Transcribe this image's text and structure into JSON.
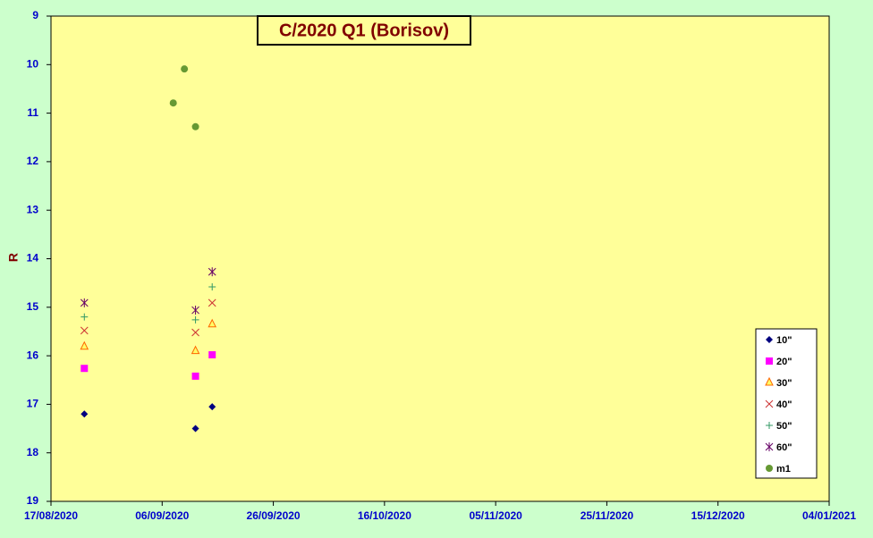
{
  "chart_data": {
    "type": "scatter",
    "title": "C/2020 Q1 (Borisov)",
    "y_label": "R",
    "y_inverted": true,
    "grid": false,
    "legend": "lower right",
    "xlim": [
      "2020-08-17",
      "2021-01-04"
    ],
    "xticks": [
      {
        "value": "2020-08-17",
        "label": "17/08/2020"
      },
      {
        "value": "2020-09-06",
        "label": "06/09/2020"
      },
      {
        "value": "2020-09-26",
        "label": "26/09/2020"
      },
      {
        "value": "2020-10-16",
        "label": "16/10/2020"
      },
      {
        "value": "2020-11-05",
        "label": "05/11/2020"
      },
      {
        "value": "2020-11-25",
        "label": "25/11/2020"
      },
      {
        "value": "2020-12-15",
        "label": "15/12/2020"
      },
      {
        "value": "2021-01-04",
        "label": "04/01/2021"
      }
    ],
    "ylim": [
      9,
      19
    ],
    "yticks": [
      9,
      10,
      11,
      12,
      13,
      14,
      15,
      16,
      17,
      18,
      19
    ],
    "series": [
      {
        "name": "10\"",
        "color": "#000080",
        "marker": "diamond",
        "x": [
          "2020-08-23",
          "2020-09-12",
          "2020-09-15"
        ],
        "values": [
          17.2,
          17.5,
          17.05
        ]
      },
      {
        "name": "20\"",
        "color": "#ff00ff",
        "marker": "square",
        "x": [
          "2020-08-23",
          "2020-09-12",
          "2020-09-15"
        ],
        "values": [
          16.26,
          16.42,
          15.98
        ]
      },
      {
        "name": "30\"",
        "color": "#ff6600",
        "marker": "triangle",
        "x": [
          "2020-08-23",
          "2020-09-12",
          "2020-09-15"
        ],
        "values": [
          15.81,
          15.9,
          15.35
        ]
      },
      {
        "name": "40\"",
        "color": "#cc3333",
        "marker": "x",
        "x": [
          "2020-08-23",
          "2020-09-12",
          "2020-09-15"
        ],
        "values": [
          15.48,
          15.52,
          14.91
        ]
      },
      {
        "name": "50\"",
        "color": "#339966",
        "marker": "plus",
        "x": [
          "2020-08-23",
          "2020-09-12",
          "2020-09-15"
        ],
        "values": [
          15.2,
          15.26,
          14.58
        ]
      },
      {
        "name": "60\"",
        "color": "#660066",
        "marker": "star",
        "x": [
          "2020-08-23",
          "2020-09-12",
          "2020-09-15"
        ],
        "values": [
          14.91,
          15.06,
          14.27
        ]
      },
      {
        "name": "m1",
        "color": "#669933",
        "marker": "circle",
        "x": [
          "2020-09-08",
          "2020-09-10",
          "2020-09-12"
        ],
        "values": [
          10.79,
          10.09,
          11.28
        ]
      }
    ]
  }
}
